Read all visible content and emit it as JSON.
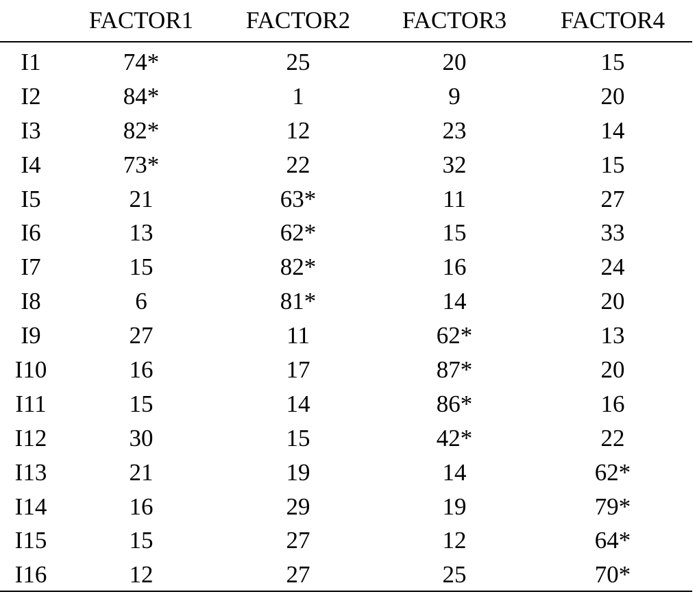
{
  "table": {
    "header": [
      "",
      "FACTOR1",
      "FACTOR2",
      "FACTOR3",
      "FACTOR4"
    ],
    "rows": [
      [
        "I1",
        "74*",
        "25",
        "20",
        "15"
      ],
      [
        "I2",
        "84*",
        "1",
        "9",
        "20"
      ],
      [
        "I3",
        "82*",
        "12",
        "23",
        "14"
      ],
      [
        "I4",
        "73*",
        "22",
        "32",
        "15"
      ],
      [
        "I5",
        "21",
        "63*",
        "11",
        "27"
      ],
      [
        "I6",
        "13",
        "62*",
        "15",
        "33"
      ],
      [
        "I7",
        "15",
        "82*",
        "16",
        "24"
      ],
      [
        "I8",
        "6",
        "81*",
        "14",
        "20"
      ],
      [
        "I9",
        "27",
        "11",
        "62*",
        "13"
      ],
      [
        "I10",
        "16",
        "17",
        "87*",
        "20"
      ],
      [
        "I11",
        "15",
        "14",
        "86*",
        "16"
      ],
      [
        "I12",
        "30",
        "15",
        "42*",
        "22"
      ],
      [
        "I13",
        "21",
        "19",
        "14",
        "62*"
      ],
      [
        "I14",
        "16",
        "29",
        "19",
        "79*"
      ],
      [
        "I15",
        "15",
        "27",
        "12",
        "64*"
      ],
      [
        "I16",
        "12",
        "27",
        "25",
        "70*"
      ]
    ]
  }
}
